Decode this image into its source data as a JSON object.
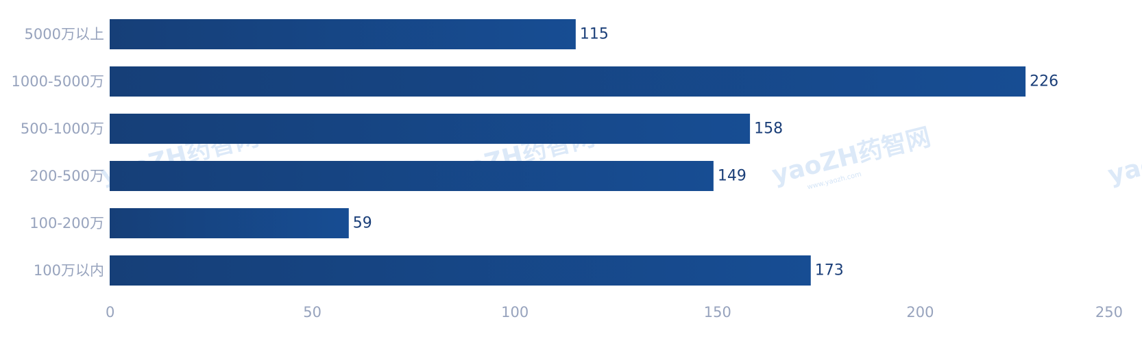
{
  "chart_data": {
    "type": "bar",
    "orientation": "horizontal",
    "categories": [
      "5000万以上",
      "1000-5000万",
      "500-1000万",
      "200-500万",
      "100-200万",
      "100万以内"
    ],
    "values": [
      115,
      226,
      158,
      149,
      59,
      173
    ],
    "xlim": [
      0,
      250
    ],
    "xticks": [
      "0",
      "50",
      "100",
      "150",
      "200",
      "250"
    ],
    "title": "",
    "xlabel": "",
    "ylabel": "",
    "grid": false,
    "legend": "none",
    "bar_color": "#174a8c",
    "bar_color_dark": "#163f78",
    "value_label_color": "#1a3e78",
    "axis_label_color": "#97a3bd"
  },
  "watermark": {
    "brand": "yaoZH药智网",
    "url": "www.yaozh.com"
  }
}
